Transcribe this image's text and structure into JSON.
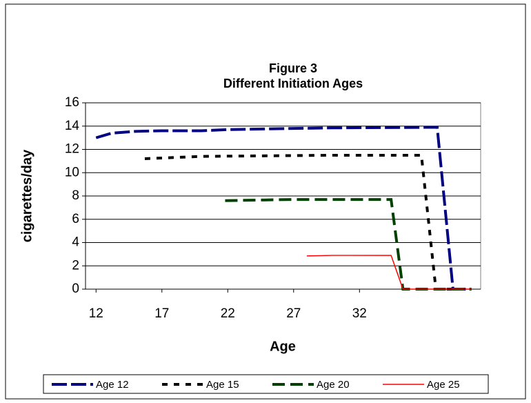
{
  "chart_data": {
    "type": "line",
    "title": "Figure 3",
    "subtitle": "Different Initiation Ages",
    "x_label": "Age",
    "y_label": "cigarettes/day",
    "xlim": [
      11.2,
      41.2
    ],
    "xticks": [
      12,
      17,
      22,
      27,
      32
    ],
    "ylim": [
      0,
      16
    ],
    "yticks": [
      0,
      2,
      4,
      6,
      8,
      10,
      12,
      14,
      16
    ],
    "grid": true,
    "legend": "bottom",
    "series": [
      {
        "name": "Age 12",
        "color": "#000080",
        "x": [
          12,
          13.2,
          15,
          17,
          20,
          22,
          27,
          30,
          37.9,
          39.1,
          40.5
        ],
        "values": [
          13.0,
          13.4,
          13.55,
          13.6,
          13.6,
          13.7,
          13.8,
          13.85,
          13.9,
          0,
          0
        ]
      },
      {
        "name": "Age 15",
        "color": "#000000",
        "x": [
          15.7,
          20,
          30,
          36.7,
          37.8,
          40.5
        ],
        "values": [
          11.2,
          11.4,
          11.5,
          11.5,
          0,
          0
        ]
      },
      {
        "name": "Age 20",
        "color": "#004000",
        "x": [
          21.8,
          27,
          34.4,
          35.3,
          40.5
        ],
        "values": [
          7.6,
          7.7,
          7.7,
          0,
          0
        ]
      },
      {
        "name": "Age 25",
        "color": "#ff0000",
        "x": [
          28,
          30,
          34.4,
          35.3,
          40.5
        ],
        "values": [
          2.85,
          2.9,
          2.9,
          0,
          0
        ]
      }
    ]
  }
}
